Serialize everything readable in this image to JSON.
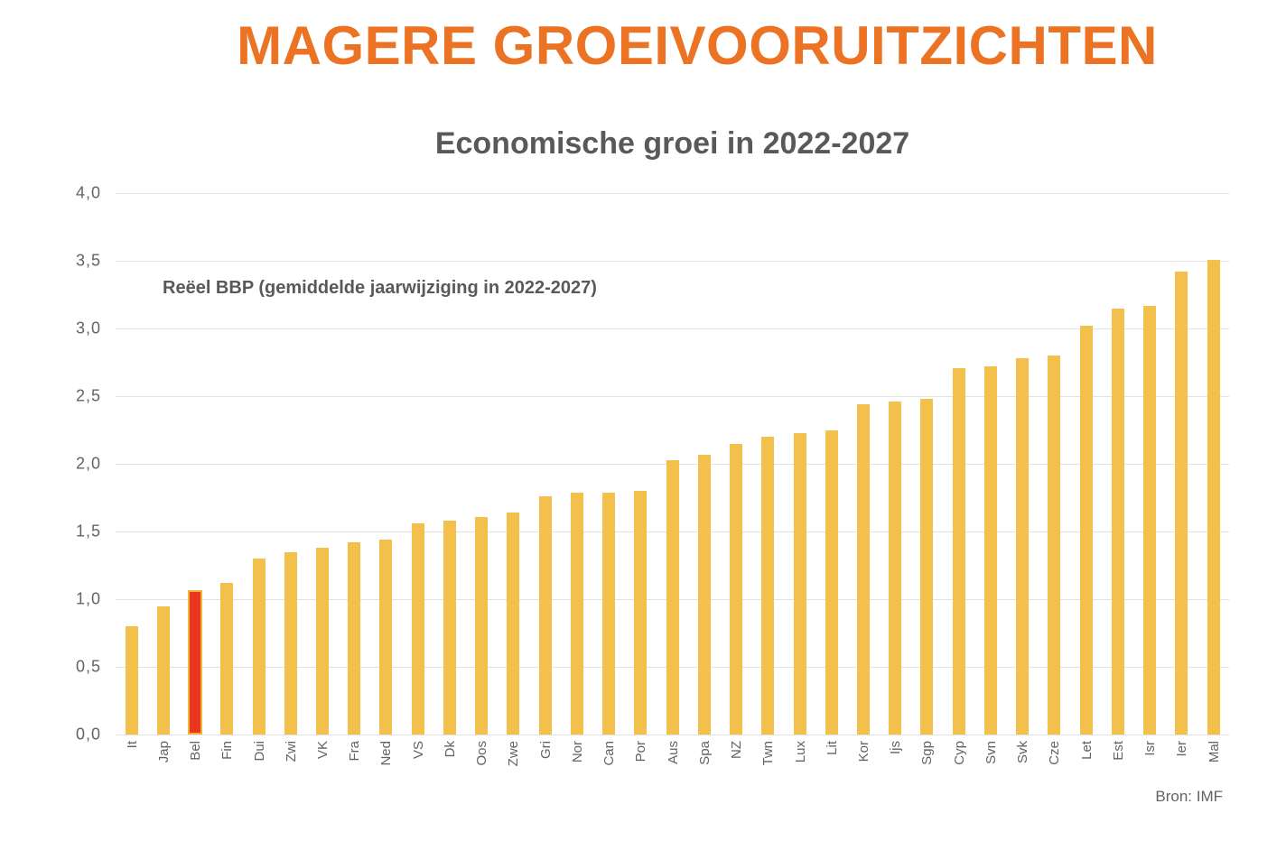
{
  "page": {
    "title": "MAGERE GROEIVOORUITZICHTEN",
    "source": "Bron: IMF"
  },
  "chart_data": {
    "type": "bar",
    "title": "Economische groei in 2022-2027",
    "annotation": "Reëel BBP (gemiddelde jaarwijziging in 2022-2027)",
    "categories": [
      "It",
      "Jap",
      "Bel",
      "Fin",
      "Dui",
      "Zwi",
      "VK",
      "Fra",
      "Ned",
      "VS",
      "Dk",
      "Oos",
      "Zwe",
      "Gri",
      "Nor",
      "Can",
      "Por",
      "Aus",
      "Spa",
      "NZ",
      "Twn",
      "Lux",
      "Lit",
      "Kor",
      "Ijs",
      "Sgp",
      "Cyp",
      "Svn",
      "Svk",
      "Cze",
      "Let",
      "Est",
      "Isr",
      "Ier",
      "Mal"
    ],
    "values": [
      0.8,
      0.95,
      1.07,
      1.12,
      1.3,
      1.35,
      1.38,
      1.42,
      1.44,
      1.56,
      1.58,
      1.61,
      1.64,
      1.76,
      1.79,
      1.79,
      1.8,
      2.03,
      2.07,
      2.15,
      2.2,
      2.23,
      2.25,
      2.44,
      2.46,
      2.48,
      2.71,
      2.72,
      2.78,
      2.8,
      3.02,
      3.15,
      3.17,
      3.42,
      3.51
    ],
    "highlight_category": "Bel",
    "ylabel": "",
    "xlabel": "",
    "ylim": [
      0,
      4
    ],
    "grid": true,
    "legend": "none",
    "y_ticks": [
      {
        "value": 0.0,
        "label": "0,0"
      },
      {
        "value": 0.5,
        "label": "0,5"
      },
      {
        "value": 1.0,
        "label": "1,0"
      },
      {
        "value": 1.5,
        "label": "1,5"
      },
      {
        "value": 2.0,
        "label": "2,0"
      },
      {
        "value": 2.5,
        "label": "2,5"
      },
      {
        "value": 3.0,
        "label": "3,0"
      },
      {
        "value": 3.5,
        "label": "3,5"
      },
      {
        "value": 4.0,
        "label": "4,0"
      }
    ],
    "colors": {
      "title": "#ec7323",
      "text": "#595959",
      "ticks": "#636363",
      "grid": "#e2e2e2",
      "bar": "#f2c04b",
      "highlight_fill": "#e9341f",
      "highlight_border": "#f2b33d"
    }
  }
}
